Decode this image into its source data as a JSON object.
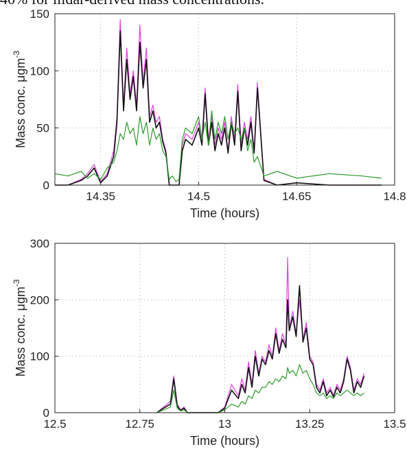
{
  "caption_fragment": "40% for ilidar-derived mass concentrations.",
  "colors": {
    "black": "#111111",
    "magenta": "#e040e0",
    "green": "#2a9a2a",
    "grid": "#cfcfcf",
    "axis": "#222222"
  },
  "chart_data": [
    {
      "type": "line",
      "title": "",
      "xlabel": "Time (hours)",
      "ylabel": "Mass conc. μgm",
      "ylabel_superscript": "-3",
      "xlim": [
        14.28,
        14.8
      ],
      "ylim": [
        0,
        150
      ],
      "xticks": [
        14.35,
        14.5,
        14.65,
        14.8
      ],
      "xtick_labels": [
        "14.35",
        "14.5",
        "14.65",
        "14.8"
      ],
      "yticks": [
        0,
        50,
        100,
        150
      ],
      "ytick_labels": [
        "0",
        "50",
        "100",
        "150"
      ],
      "grid": true,
      "series": [
        {
          "color": "magenta",
          "x": [
            14.28,
            14.3,
            14.32,
            14.33,
            14.34,
            14.35,
            14.36,
            14.37,
            14.375,
            14.38,
            14.385,
            14.39,
            14.395,
            14.4,
            14.405,
            14.41,
            14.415,
            14.42,
            14.425,
            14.43,
            14.435,
            14.44,
            14.445,
            14.45,
            14.455,
            14.46,
            14.465,
            14.47,
            14.475,
            14.48,
            14.49,
            14.5,
            14.505,
            14.51,
            14.515,
            14.52,
            14.525,
            14.53,
            14.535,
            14.54,
            14.545,
            14.55,
            14.555,
            14.56,
            14.565,
            14.57,
            14.575,
            14.58,
            14.585,
            14.59,
            14.6,
            14.62,
            14.65,
            14.7,
            14.75,
            14.78
          ],
          "y": [
            0,
            0,
            5,
            10,
            18,
            3,
            10,
            30,
            60,
            145,
            70,
            120,
            80,
            100,
            70,
            140,
            90,
            120,
            60,
            70,
            55,
            60,
            40,
            30,
            0,
            0,
            0,
            0,
            35,
            45,
            40,
            55,
            40,
            85,
            40,
            60,
            35,
            50,
            40,
            55,
            30,
            60,
            40,
            88,
            35,
            55,
            40,
            60,
            30,
            90,
            5,
            0,
            2,
            0,
            0,
            0
          ]
        },
        {
          "color": "black",
          "x": [
            14.28,
            14.3,
            14.32,
            14.33,
            14.34,
            14.35,
            14.36,
            14.37,
            14.375,
            14.38,
            14.385,
            14.39,
            14.395,
            14.4,
            14.405,
            14.41,
            14.415,
            14.42,
            14.425,
            14.43,
            14.435,
            14.44,
            14.445,
            14.45,
            14.455,
            14.46,
            14.465,
            14.47,
            14.475,
            14.48,
            14.49,
            14.5,
            14.505,
            14.51,
            14.515,
            14.52,
            14.525,
            14.53,
            14.535,
            14.54,
            14.545,
            14.55,
            14.555,
            14.56,
            14.565,
            14.57,
            14.575,
            14.58,
            14.585,
            14.59,
            14.6,
            14.62,
            14.65,
            14.7,
            14.75,
            14.78
          ],
          "y": [
            0,
            0,
            4,
            8,
            15,
            2,
            8,
            25,
            55,
            135,
            65,
            110,
            75,
            95,
            65,
            125,
            85,
            110,
            55,
            65,
            50,
            55,
            38,
            28,
            0,
            0,
            0,
            0,
            30,
            40,
            35,
            50,
            35,
            80,
            35,
            55,
            30,
            45,
            35,
            50,
            28,
            55,
            35,
            82,
            30,
            50,
            35,
            55,
            28,
            85,
            4,
            0,
            2,
            0,
            0,
            0
          ]
        },
        {
          "color": "green",
          "x": [
            14.28,
            14.3,
            14.32,
            14.33,
            14.34,
            14.35,
            14.36,
            14.37,
            14.375,
            14.38,
            14.385,
            14.39,
            14.395,
            14.4,
            14.405,
            14.41,
            14.415,
            14.42,
            14.425,
            14.43,
            14.435,
            14.44,
            14.445,
            14.45,
            14.455,
            14.46,
            14.465,
            14.47,
            14.475,
            14.48,
            14.49,
            14.5,
            14.505,
            14.51,
            14.515,
            14.52,
            14.525,
            14.53,
            14.535,
            14.54,
            14.545,
            14.55,
            14.555,
            14.56,
            14.565,
            14.57,
            14.575,
            14.58,
            14.585,
            14.59,
            14.6,
            14.62,
            14.65,
            14.7,
            14.75,
            14.78
          ],
          "y": [
            10,
            8,
            12,
            6,
            10,
            5,
            15,
            20,
            30,
            45,
            40,
            55,
            45,
            50,
            35,
            60,
            45,
            55,
            35,
            50,
            40,
            45,
            30,
            25,
            5,
            8,
            3,
            5,
            40,
            50,
            45,
            60,
            40,
            55,
            35,
            65,
            40,
            55,
            45,
            60,
            40,
            55,
            45,
            50,
            40,
            50,
            30,
            40,
            20,
            25,
            8,
            12,
            6,
            10,
            8,
            6
          ]
        }
      ]
    },
    {
      "type": "line",
      "title": "",
      "xlabel": "Time (hours)",
      "ylabel": "Mass conc. μgm",
      "ylabel_superscript": "-3",
      "xlim": [
        12.5,
        13.5
      ],
      "ylim": [
        0,
        300
      ],
      "xticks": [
        12.5,
        12.75,
        13,
        13.25,
        13.5
      ],
      "xtick_labels": [
        "12.5",
        "12.75",
        "13",
        "13.25",
        "13.5"
      ],
      "yticks": [
        0,
        100,
        200,
        300
      ],
      "ytick_labels": [
        "0",
        "100",
        "200",
        "300"
      ],
      "grid": true,
      "series": [
        {
          "color": "magenta",
          "x": [
            12.8,
            12.82,
            12.84,
            12.85,
            12.86,
            12.87,
            12.88,
            12.89,
            12.95,
            12.98,
            13.0,
            13.02,
            13.04,
            13.05,
            13.06,
            13.07,
            13.08,
            13.09,
            13.1,
            13.11,
            13.12,
            13.13,
            13.14,
            13.15,
            13.16,
            13.17,
            13.18,
            13.185,
            13.19,
            13.2,
            13.21,
            13.22,
            13.23,
            13.24,
            13.25,
            13.26,
            13.27,
            13.28,
            13.29,
            13.3,
            13.31,
            13.32,
            13.33,
            13.34,
            13.35,
            13.36,
            13.37,
            13.38,
            13.39,
            13.4,
            13.41
          ],
          "y": [
            0,
            10,
            20,
            65,
            15,
            5,
            10,
            0,
            0,
            0,
            10,
            50,
            30,
            60,
            40,
            90,
            50,
            110,
            70,
            100,
            90,
            120,
            100,
            150,
            110,
            140,
            120,
            275,
            150,
            180,
            140,
            200,
            130,
            160,
            100,
            90,
            50,
            40,
            60,
            35,
            45,
            30,
            50,
            40,
            60,
            100,
            80,
            40,
            60,
            50,
            70
          ]
        },
        {
          "color": "black",
          "x": [
            12.8,
            12.82,
            12.84,
            12.85,
            12.86,
            12.87,
            12.88,
            12.89,
            12.95,
            12.98,
            13.0,
            13.02,
            13.04,
            13.05,
            13.06,
            13.07,
            13.08,
            13.09,
            13.1,
            13.11,
            13.12,
            13.13,
            13.14,
            13.15,
            13.16,
            13.17,
            13.18,
            13.185,
            13.19,
            13.2,
            13.21,
            13.22,
            13.23,
            13.24,
            13.25,
            13.26,
            13.27,
            13.28,
            13.29,
            13.3,
            13.31,
            13.32,
            13.33,
            13.34,
            13.35,
            13.36,
            13.37,
            13.38,
            13.39,
            13.4,
            13.41
          ],
          "y": [
            0,
            8,
            15,
            60,
            12,
            4,
            8,
            0,
            0,
            0,
            8,
            40,
            25,
            50,
            35,
            80,
            45,
            100,
            65,
            95,
            85,
            110,
            95,
            140,
            105,
            130,
            115,
            200,
            145,
            170,
            135,
            225,
            125,
            150,
            95,
            85,
            45,
            35,
            55,
            30,
            40,
            28,
            45,
            35,
            55,
            95,
            75,
            35,
            55,
            45,
            65
          ]
        },
        {
          "color": "green",
          "x": [
            12.8,
            12.82,
            12.84,
            12.85,
            12.86,
            12.87,
            12.88,
            12.89,
            12.95,
            12.98,
            13.0,
            13.02,
            13.04,
            13.05,
            13.06,
            13.07,
            13.08,
            13.09,
            13.1,
            13.11,
            13.12,
            13.13,
            13.14,
            13.15,
            13.16,
            13.17,
            13.18,
            13.185,
            13.19,
            13.2,
            13.21,
            13.22,
            13.23,
            13.24,
            13.25,
            13.26,
            13.27,
            13.28,
            13.29,
            13.3,
            13.31,
            13.32,
            13.33,
            13.34,
            13.35,
            13.36,
            13.37,
            13.38,
            13.39,
            13.4,
            13.41
          ],
          "y": [
            0,
            5,
            10,
            40,
            8,
            3,
            5,
            0,
            0,
            0,
            5,
            15,
            10,
            20,
            15,
            30,
            25,
            40,
            35,
            45,
            45,
            55,
            50,
            60,
            55,
            65,
            60,
            80,
            70,
            75,
            65,
            85,
            70,
            75,
            60,
            50,
            35,
            30,
            35,
            25,
            30,
            25,
            35,
            30,
            35,
            40,
            35,
            30,
            35,
            30,
            35
          ]
        }
      ]
    }
  ]
}
